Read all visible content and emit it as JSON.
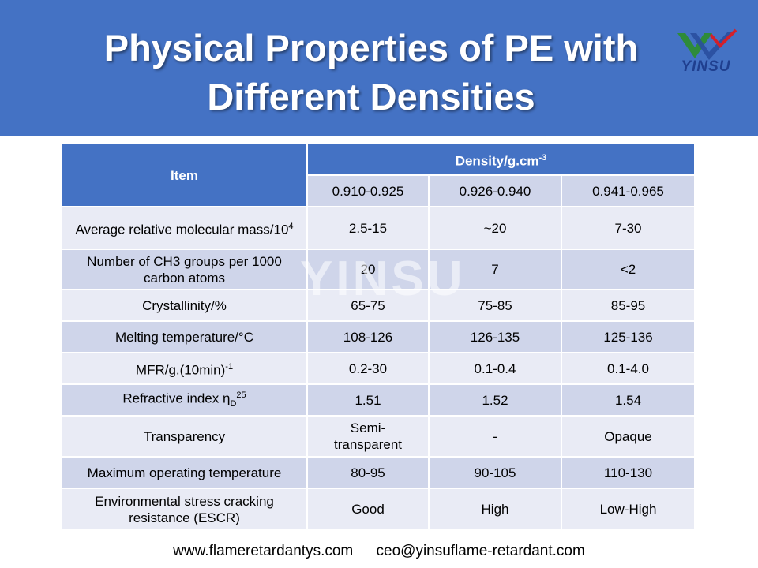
{
  "slide": {
    "title_line1": "Physical Properties of PE with",
    "title_line2": "Different Densities",
    "logo_text": "YINSU",
    "watermark": "YINSU",
    "footer_website": "www.flameretardantys.com",
    "footer_email": "ceo@yinsuflame-retardant.com",
    "colors": {
      "header": "#4472c4",
      "row_light": "#e9ebf5",
      "row_dark": "#cfd5ea"
    }
  },
  "table": {
    "item_header": "Item",
    "density_header": "Density/g.cm",
    "density_header_sup": "-3",
    "density_ranges": [
      "0.910-0.925",
      "0.926-0.940",
      "0.941-0.965"
    ],
    "rows": [
      {
        "item": "Average relative molecular mass/10",
        "item_sup": "4",
        "values": [
          "2.5-15",
          "~20",
          "7-30"
        ]
      },
      {
        "item": "Number of CH3 groups per 1000 carbon atoms",
        "values": [
          "20",
          "7",
          "<2"
        ]
      },
      {
        "item": "Crystallinity/%",
        "values": [
          "65-75",
          "75-85",
          "85-95"
        ]
      },
      {
        "item": "Melting temperature/°C",
        "values": [
          "108-126",
          "126-135",
          "125-136"
        ]
      },
      {
        "item": "MFR/g.(10min)",
        "item_sup": "-1",
        "values": [
          "0.2-30",
          "0.1-0.4",
          "0.1-4.0"
        ]
      },
      {
        "item": "Refractive index η",
        "item_sub": "D",
        "item_sup": "25",
        "values": [
          "1.51",
          "1.52",
          "1.54"
        ]
      },
      {
        "item": "Transparency",
        "values": [
          "Semi-transparent",
          "-",
          "Opaque"
        ]
      },
      {
        "item": "Maximum operating temperature",
        "values": [
          "80-95",
          "90-105",
          "110-130"
        ]
      },
      {
        "item": "Environmental stress cracking resistance (ESCR)",
        "values": [
          "Good",
          "High",
          "Low-High"
        ]
      }
    ]
  }
}
